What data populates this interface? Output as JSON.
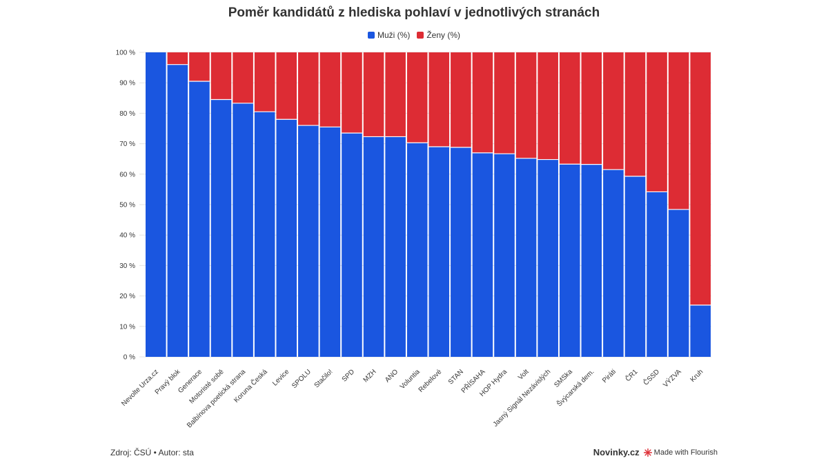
{
  "colors": {
    "men": "#1a56e0",
    "women": "#dd2c34",
    "grid": "#e3e3e3"
  },
  "legend": {
    "men_label": "Muži (%)",
    "women_label": "Ženy (%)"
  },
  "footer": {
    "source": "Zdroj: ČSÚ • Autor: sta",
    "brand": "Novinky.cz",
    "flourish": "Made with Flourish",
    "flourish_icon": "flourish-star-icon"
  },
  "chart_data": {
    "type": "bar",
    "stacked": true,
    "title": "Poměr kandidátů z hlediska pohlaví v jednotlivých stranách",
    "legend_position": "top-center",
    "grid": true,
    "ylim": [
      0,
      100
    ],
    "y_ticks": [
      0,
      10,
      20,
      30,
      40,
      50,
      60,
      70,
      80,
      90,
      100
    ],
    "y_tick_labels": [
      "0 %",
      "10 %",
      "20 %",
      "30 %",
      "40 %",
      "50 %",
      "60 %",
      "70 %",
      "80 %",
      "90 %",
      "100 %"
    ],
    "categories": [
      "Nevolte Urza.cz",
      "Pravý blok",
      "Generace",
      "Motoristé sobě",
      "Balbínova poetická strana",
      "Koruna Česká",
      "Levice",
      "SPOLU",
      "Stačilo!",
      "SPD",
      "MZH",
      "ANO",
      "Voluntia",
      "Rebelové",
      "STAN",
      "PŘÍSAHA",
      "HOP Hydra",
      "Volt",
      "Jasný Signál Nezávislých",
      "SMSka",
      "Švýcarská dem.",
      "Piráti",
      "ČR1",
      "ČSSD",
      "VÝZVA",
      "Kruh"
    ],
    "series": [
      {
        "name": "Muži (%)",
        "values": [
          100,
          96,
          90.5,
          84.5,
          83.3,
          80.5,
          78,
          76,
          75.5,
          73.5,
          72.3,
          72.3,
          70.3,
          69,
          68.8,
          67,
          66.7,
          65.2,
          64.8,
          63.3,
          63.2,
          61.5,
          59.3,
          54.2,
          48.4,
          17
        ]
      },
      {
        "name": "Ženy (%)",
        "values": [
          0,
          4,
          9.5,
          15.5,
          16.7,
          19.5,
          22,
          24,
          24.5,
          26.5,
          27.7,
          27.7,
          29.7,
          31,
          31.2,
          33,
          33.3,
          34.8,
          35.2,
          36.7,
          36.8,
          38.5,
          40.7,
          45.8,
          51.6,
          83
        ]
      }
    ]
  }
}
